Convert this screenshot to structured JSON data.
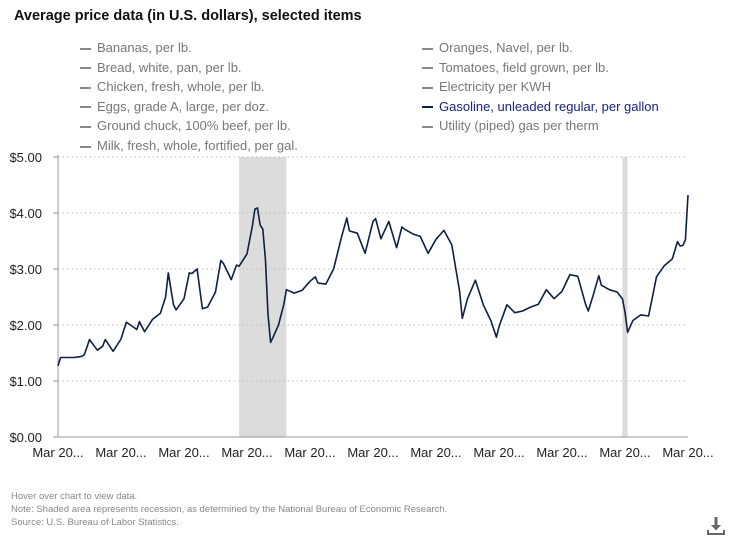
{
  "title": "Average price data (in U.S. dollars), selected items",
  "legend": {
    "left": [
      "Bananas, per lb.",
      "Bread, white, pan, per lb.",
      "Chicken, fresh, whole, per lb.",
      "Eggs, grade A, large, per doz.",
      "Ground chuck, 100% beef, per lb.",
      "Milk, fresh, whole, fortified, per gal."
    ],
    "right": [
      "Oranges, Navel, per lb.",
      "Tomatoes, field grown, per lb.",
      "Electricity per KWH",
      "Gasoline, unleaded regular, per gallon",
      "Utility (piped) gas per therm"
    ],
    "active": "Gasoline, unleaded regular, per gallon"
  },
  "chart_data": {
    "type": "line",
    "ylim": [
      0,
      5
    ],
    "y_tick_labels": [
      "$0.00",
      "$1.00",
      "$2.00",
      "$3.00",
      "$4.00",
      "$5.00"
    ],
    "x_range": [
      "2002-03",
      "2022-03"
    ],
    "x_tick_labels": [
      "Mar 20...",
      "Mar 20...",
      "Mar 20...",
      "Mar 20...",
      "Mar 20...",
      "Mar 20...",
      "Mar 20...",
      "Mar 20...",
      "Mar 20...",
      "Mar 20...",
      "Mar 20..."
    ],
    "grid": "horizontal dotted",
    "recessions": [
      [
        "2007-12",
        "2009-06"
      ],
      [
        "2020-02",
        "2020-04"
      ]
    ],
    "series": [
      {
        "name": "Gasoline, unleaded regular, per gallon",
        "color": "#0f2040",
        "x": [
          "2002-03",
          "2002-04",
          "2002-06",
          "2002-09",
          "2002-12",
          "2003-01",
          "2003-03",
          "2003-06",
          "2003-08",
          "2003-09",
          "2003-12",
          "2004-03",
          "2004-05",
          "2004-06",
          "2004-09",
          "2004-10",
          "2004-12",
          "2005-03",
          "2005-06",
          "2005-08",
          "2005-09",
          "2005-11",
          "2005-12",
          "2006-03",
          "2006-05",
          "2006-06",
          "2006-08",
          "2006-10",
          "2006-12",
          "2007-03",
          "2007-05",
          "2007-06",
          "2007-09",
          "2007-11",
          "2007-12",
          "2008-03",
          "2008-05",
          "2008-06",
          "2008-07",
          "2008-08",
          "2008-09",
          "2008-10",
          "2008-11",
          "2008-12",
          "2009-01",
          "2009-03",
          "2009-05",
          "2009-06",
          "2009-09",
          "2009-12",
          "2010-03",
          "2010-05",
          "2010-06",
          "2010-09",
          "2010-12",
          "2011-03",
          "2011-05",
          "2011-06",
          "2011-09",
          "2011-12",
          "2012-03",
          "2012-04",
          "2012-06",
          "2012-09",
          "2012-12",
          "2013-02",
          "2013-03",
          "2013-06",
          "2013-09",
          "2013-12",
          "2014-03",
          "2014-06",
          "2014-09",
          "2014-12",
          "2015-01",
          "2015-03",
          "2015-06",
          "2015-09",
          "2015-12",
          "2016-02",
          "2016-03",
          "2016-06",
          "2016-09",
          "2016-12",
          "2017-03",
          "2017-06",
          "2017-09",
          "2017-12",
          "2018-03",
          "2018-06",
          "2018-09",
          "2018-12",
          "2019-01",
          "2019-03",
          "2019-05",
          "2019-06",
          "2019-09",
          "2019-12",
          "2020-02",
          "2020-03",
          "2020-04",
          "2020-06",
          "2020-09",
          "2020-12",
          "2021-03",
          "2021-06",
          "2021-09",
          "2021-11",
          "2021-12",
          "2022-01",
          "2022-02",
          "2022-03"
        ],
        "values": [
          1.27,
          1.42,
          1.42,
          1.42,
          1.44,
          1.47,
          1.74,
          1.55,
          1.62,
          1.74,
          1.53,
          1.75,
          2.05,
          2.02,
          1.92,
          2.06,
          1.88,
          2.1,
          2.21,
          2.5,
          2.93,
          2.36,
          2.27,
          2.47,
          2.93,
          2.92,
          3.0,
          2.29,
          2.32,
          2.59,
          3.15,
          3.1,
          2.81,
          3.07,
          3.05,
          3.27,
          3.76,
          4.07,
          4.09,
          3.79,
          3.71,
          3.18,
          2.19,
          1.69,
          1.79,
          2.0,
          2.37,
          2.63,
          2.57,
          2.62,
          2.78,
          2.86,
          2.75,
          2.73,
          3.0,
          3.57,
          3.91,
          3.68,
          3.64,
          3.28,
          3.85,
          3.9,
          3.54,
          3.85,
          3.38,
          3.75,
          3.71,
          3.63,
          3.58,
          3.28,
          3.53,
          3.69,
          3.43,
          2.6,
          2.12,
          2.47,
          2.8,
          2.36,
          2.07,
          1.78,
          1.97,
          2.36,
          2.22,
          2.25,
          2.32,
          2.37,
          2.63,
          2.47,
          2.6,
          2.9,
          2.87,
          2.37,
          2.25,
          2.55,
          2.88,
          2.71,
          2.63,
          2.59,
          2.47,
          2.23,
          1.87,
          2.08,
          2.18,
          2.16,
          2.86,
          3.06,
          3.18,
          3.49,
          3.41,
          3.42,
          3.52,
          4.32
        ]
      }
    ]
  },
  "notes": [
    "Hover over chart to view data.",
    "Note: Shaded area represents recession, as determined by the National Bureau of Economic Research.",
    "Source: U.S. Bureau of Labor Statistics."
  ],
  "download_icon": "download-icon"
}
